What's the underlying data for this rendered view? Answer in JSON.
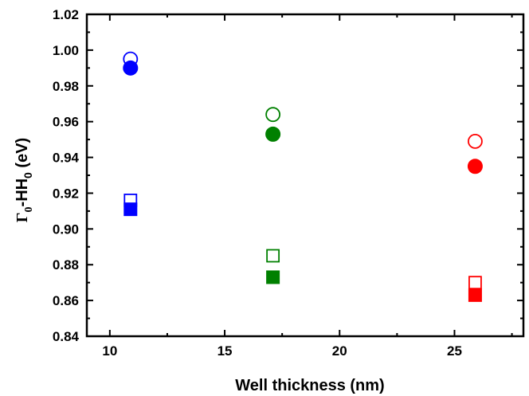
{
  "chart_data": {
    "type": "scatter",
    "xlabel": "Well thickness (nm)",
    "ylabel": {
      "gamma": "Γ",
      "sub1": "0",
      "mid": "-HH",
      "sub2": "0",
      "unit": " (eV)"
    },
    "xlim": [
      9,
      28
    ],
    "ylim": [
      0.84,
      1.02
    ],
    "xticks": [
      10,
      15,
      20,
      25
    ],
    "xtick_labels": [
      "10",
      "15",
      "20",
      "25"
    ],
    "yticks": [
      0.84,
      0.86,
      0.88,
      0.9,
      0.92,
      0.94,
      0.96,
      0.98,
      1.0,
      1.02
    ],
    "ytick_labels": [
      "0.84",
      "0.86",
      "0.88",
      "0.90",
      "0.92",
      "0.94",
      "0.96",
      "0.98",
      "1.00",
      "1.02"
    ],
    "grid": false,
    "series": [
      {
        "marker": "circle",
        "filled": false,
        "points": [
          {
            "x": 10.9,
            "y": 0.995,
            "color": "#0000ff"
          },
          {
            "x": 17.1,
            "y": 0.964,
            "color": "#008000"
          },
          {
            "x": 25.9,
            "y": 0.949,
            "color": "#ff0000"
          }
        ]
      },
      {
        "marker": "circle",
        "filled": true,
        "points": [
          {
            "x": 10.9,
            "y": 0.99,
            "color": "#0000ff"
          },
          {
            "x": 17.1,
            "y": 0.953,
            "color": "#008000"
          },
          {
            "x": 25.9,
            "y": 0.935,
            "color": "#ff0000"
          }
        ]
      },
      {
        "marker": "square",
        "filled": false,
        "points": [
          {
            "x": 10.9,
            "y": 0.916,
            "color": "#0000ff"
          },
          {
            "x": 17.1,
            "y": 0.885,
            "color": "#008000"
          },
          {
            "x": 25.9,
            "y": 0.87,
            "color": "#ff0000"
          }
        ]
      },
      {
        "marker": "square",
        "filled": true,
        "points": [
          {
            "x": 10.9,
            "y": 0.911,
            "color": "#0000ff"
          },
          {
            "x": 17.1,
            "y": 0.873,
            "color": "#008000"
          },
          {
            "x": 25.9,
            "y": 0.863,
            "color": "#ff0000"
          }
        ]
      }
    ]
  }
}
